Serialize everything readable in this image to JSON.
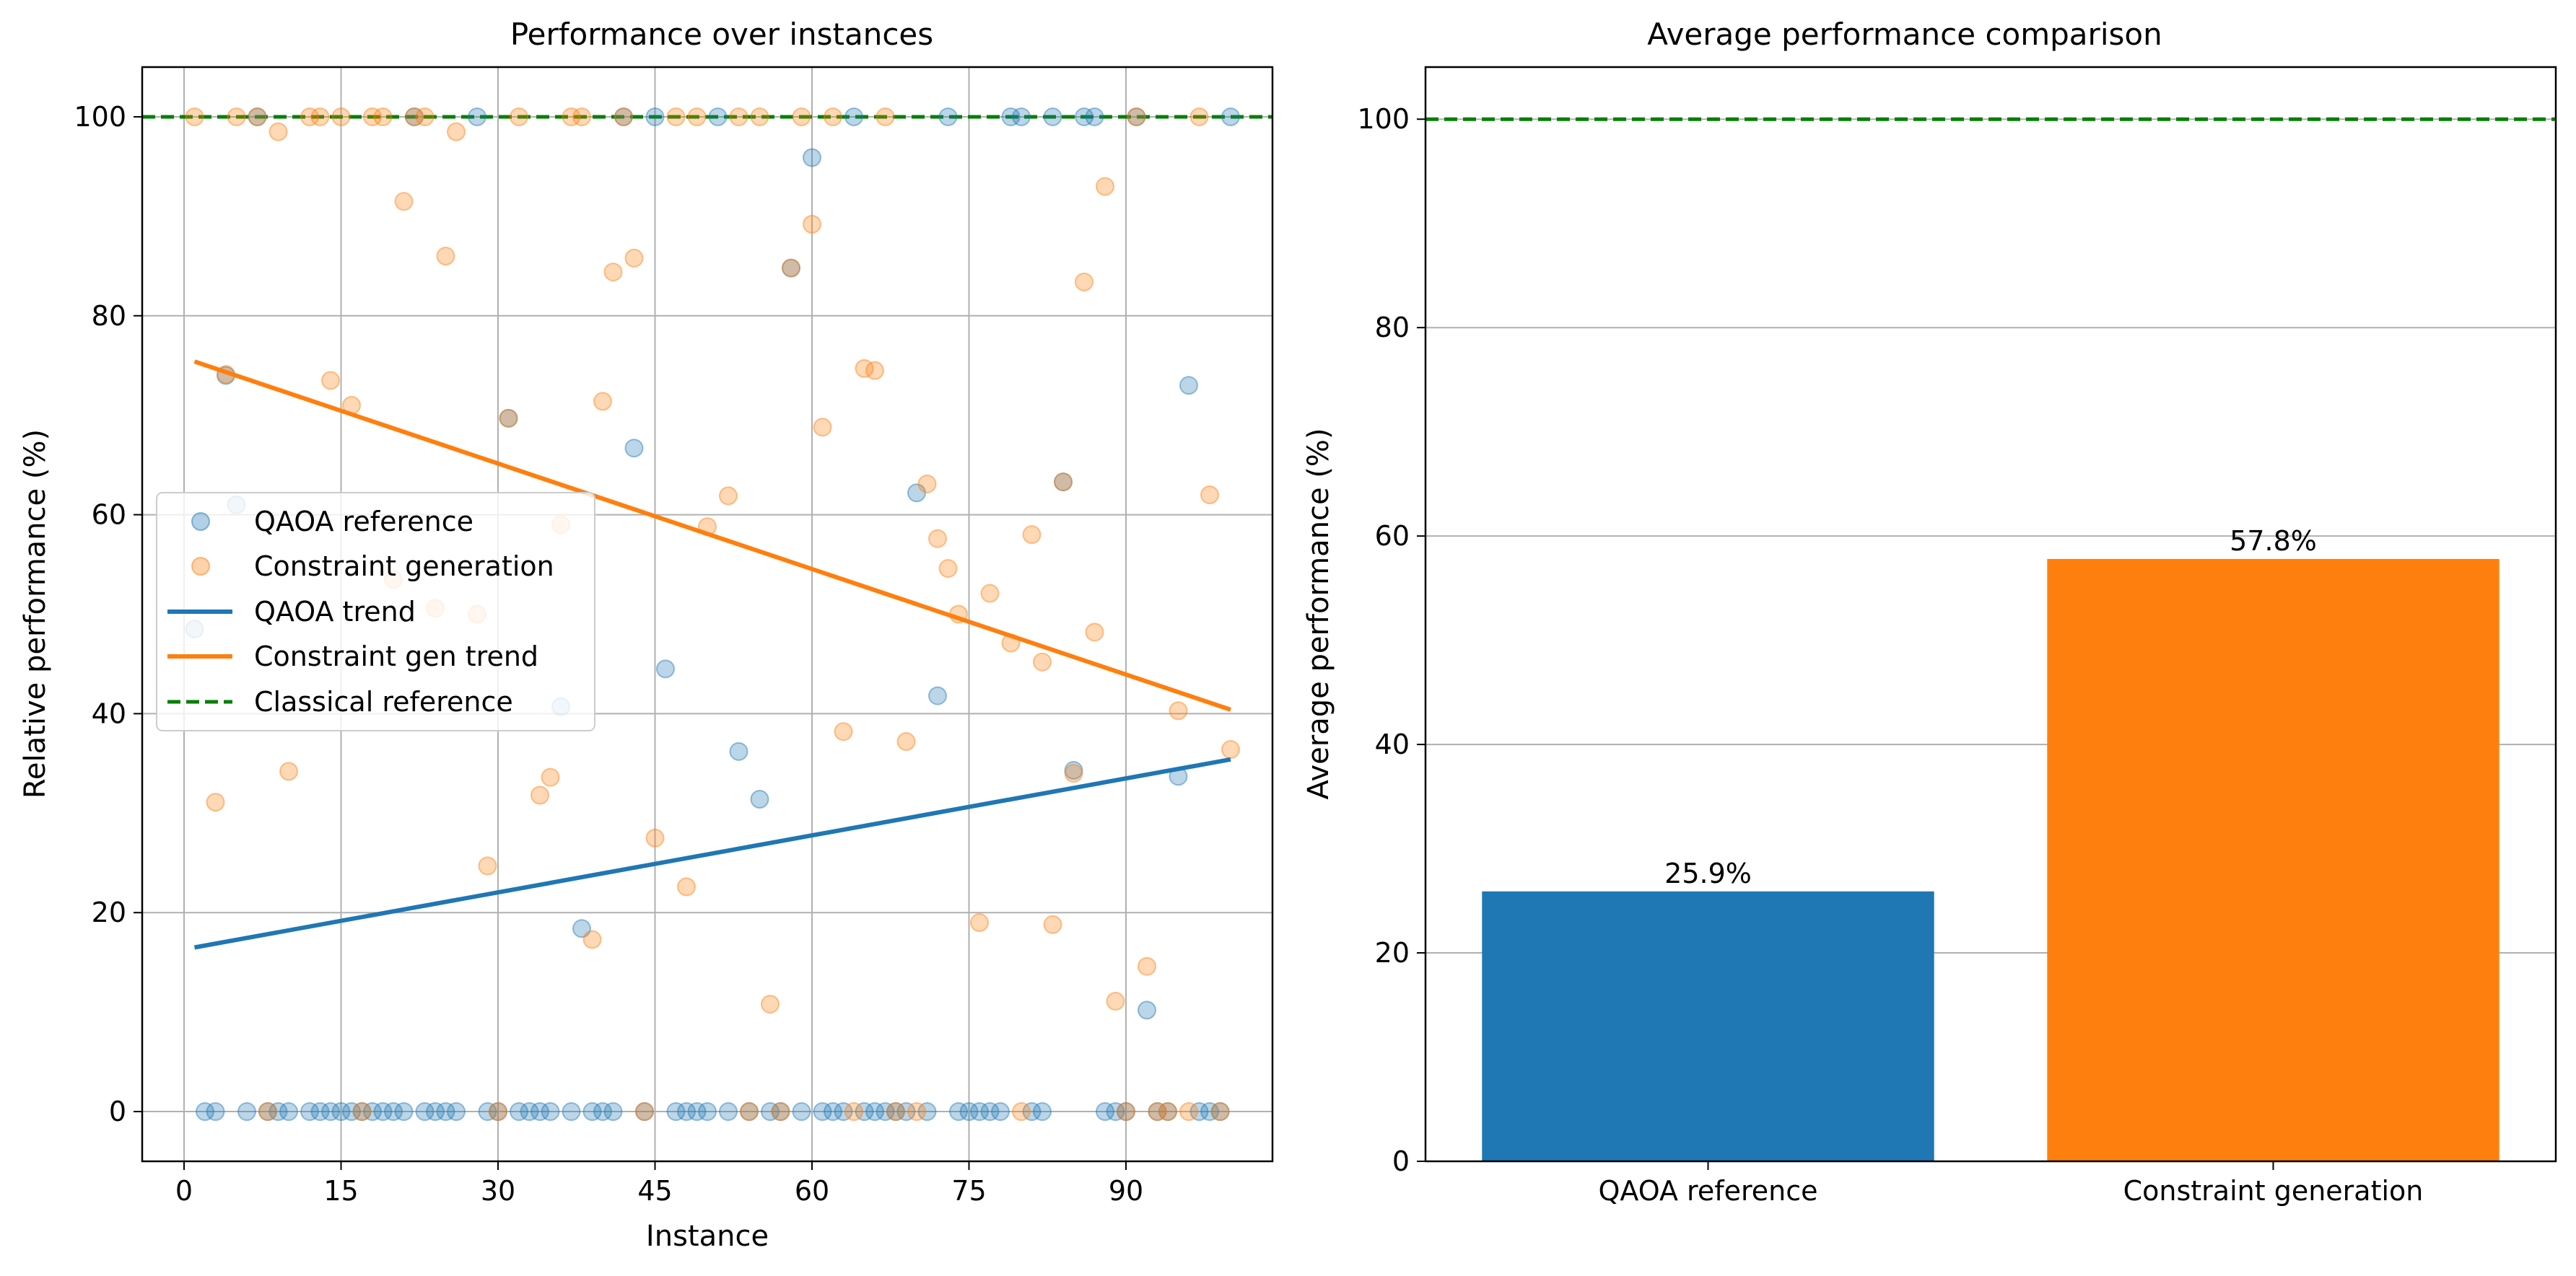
{
  "chart_data": [
    {
      "type": "scatter",
      "title": "Performance over instances",
      "xlabel": "Instance",
      "ylabel": "Relative performance (%)",
      "xlim": [
        -4,
        104
      ],
      "ylim": [
        -5,
        105
      ],
      "xticks": [
        0,
        15,
        30,
        45,
        60,
        75,
        90
      ],
      "yticks": [
        0,
        20,
        40,
        60,
        80,
        100
      ],
      "grid": true,
      "legend_position": "center-left",
      "legend": [
        "QAOA reference",
        "Constraint generation",
        "QAOA trend",
        "Constraint gen trend",
        "Classical reference"
      ],
      "series": [
        {
          "name": "QAOA reference",
          "kind": "scatter",
          "color": "#1f77b4",
          "points": [
            [
              1,
              48.5
            ],
            [
              2,
              0
            ],
            [
              3,
              0
            ],
            [
              4,
              74
            ],
            [
              5,
              61
            ],
            [
              6,
              0
            ],
            [
              7,
              100
            ],
            [
              8,
              0
            ],
            [
              9,
              0
            ],
            [
              10,
              0
            ],
            [
              12,
              0
            ],
            [
              13,
              0
            ],
            [
              14,
              0
            ],
            [
              15,
              0
            ],
            [
              16,
              0
            ],
            [
              17,
              0
            ],
            [
              18,
              0
            ],
            [
              19,
              0
            ],
            [
              20,
              0
            ],
            [
              21,
              0
            ],
            [
              22,
              100
            ],
            [
              23,
              0
            ],
            [
              24,
              0
            ],
            [
              25,
              0
            ],
            [
              26,
              0
            ],
            [
              28,
              100
            ],
            [
              29,
              0
            ],
            [
              30,
              0
            ],
            [
              31,
              69.7
            ],
            [
              32,
              0
            ],
            [
              33,
              0
            ],
            [
              34,
              0
            ],
            [
              35,
              0
            ],
            [
              36,
              40.7
            ],
            [
              37,
              0
            ],
            [
              38,
              18.4
            ],
            [
              39,
              0
            ],
            [
              40,
              0
            ],
            [
              41,
              0
            ],
            [
              42,
              100
            ],
            [
              43,
              66.7
            ],
            [
              44,
              0
            ],
            [
              45,
              100
            ],
            [
              46,
              44.5
            ],
            [
              47,
              0
            ],
            [
              48,
              0
            ],
            [
              49,
              0
            ],
            [
              50,
              0
            ],
            [
              51,
              100
            ],
            [
              52,
              0
            ],
            [
              53,
              36.2
            ],
            [
              54,
              0
            ],
            [
              55,
              31.4
            ],
            [
              56,
              0
            ],
            [
              57,
              0
            ],
            [
              58,
              84.8
            ],
            [
              59,
              0
            ],
            [
              60,
              95.9
            ],
            [
              61,
              0
            ],
            [
              62,
              0
            ],
            [
              63,
              0
            ],
            [
              64,
              100
            ],
            [
              65,
              0
            ],
            [
              66,
              0
            ],
            [
              67,
              0
            ],
            [
              68,
              0
            ],
            [
              69,
              0
            ],
            [
              70,
              62.2
            ],
            [
              71,
              0
            ],
            [
              72,
              41.8
            ],
            [
              73,
              100
            ],
            [
              74,
              0
            ],
            [
              75,
              0
            ],
            [
              76,
              0
            ],
            [
              77,
              0
            ],
            [
              78,
              0
            ],
            [
              79,
              100
            ],
            [
              80,
              100
            ],
            [
              81,
              0
            ],
            [
              82,
              0
            ],
            [
              83,
              100
            ],
            [
              84,
              63.3
            ],
            [
              85,
              34.3
            ],
            [
              86,
              100
            ],
            [
              87,
              100
            ],
            [
              88,
              0
            ],
            [
              89,
              0
            ],
            [
              90,
              0
            ],
            [
              91,
              100
            ],
            [
              92,
              10.2
            ],
            [
              93,
              0
            ],
            [
              94,
              0
            ],
            [
              95,
              33.7
            ],
            [
              96,
              73
            ],
            [
              97,
              0
            ],
            [
              98,
              0
            ],
            [
              99,
              0
            ],
            [
              100,
              100
            ]
          ]
        },
        {
          "name": "Constraint generation",
          "kind": "scatter",
          "color": "#ff7f0e",
          "points": [
            [
              1,
              100
            ],
            [
              3,
              31.1
            ],
            [
              4,
              74.1
            ],
            [
              5,
              100
            ],
            [
              7,
              100
            ],
            [
              8,
              0
            ],
            [
              9,
              98.5
            ],
            [
              10,
              34.2
            ],
            [
              12,
              100
            ],
            [
              13,
              100
            ],
            [
              14,
              73.5
            ],
            [
              15,
              100
            ],
            [
              16,
              71
            ],
            [
              17,
              0
            ],
            [
              18,
              100
            ],
            [
              19,
              100
            ],
            [
              20,
              53.5
            ],
            [
              21,
              91.5
            ],
            [
              22,
              100
            ],
            [
              23,
              100
            ],
            [
              24,
              50.6
            ],
            [
              25,
              86
            ],
            [
              26,
              98.5
            ],
            [
              28,
              50
            ],
            [
              29,
              24.7
            ],
            [
              30,
              0
            ],
            [
              31,
              69.7
            ],
            [
              32,
              100
            ],
            [
              34,
              31.8
            ],
            [
              35,
              33.6
            ],
            [
              36,
              59
            ],
            [
              37,
              100
            ],
            [
              38,
              100
            ],
            [
              39,
              17.3
            ],
            [
              40,
              71.4
            ],
            [
              41,
              84.4
            ],
            [
              42,
              100
            ],
            [
              43,
              85.8
            ],
            [
              44,
              0
            ],
            [
              45,
              27.5
            ],
            [
              47,
              100
            ],
            [
              48,
              22.6
            ],
            [
              49,
              100
            ],
            [
              50,
              58.8
            ],
            [
              52,
              61.9
            ],
            [
              53,
              100
            ],
            [
              54,
              0
            ],
            [
              55,
              100
            ],
            [
              56,
              10.8
            ],
            [
              57,
              0
            ],
            [
              58,
              84.8
            ],
            [
              59,
              100
            ],
            [
              60,
              89.2
            ],
            [
              61,
              68.8
            ],
            [
              62,
              100
            ],
            [
              63,
              38.2
            ],
            [
              64,
              0
            ],
            [
              65,
              74.7
            ],
            [
              66,
              74.5
            ],
            [
              67,
              100
            ],
            [
              68,
              0
            ],
            [
              69,
              37.2
            ],
            [
              70,
              0
            ],
            [
              71,
              63.1
            ],
            [
              72,
              57.6
            ],
            [
              73,
              54.6
            ],
            [
              74,
              50
            ],
            [
              76,
              19
            ],
            [
              77,
              52.1
            ],
            [
              79,
              47.1
            ],
            [
              80,
              0
            ],
            [
              81,
              58
            ],
            [
              82,
              45.2
            ],
            [
              83,
              18.8
            ],
            [
              84,
              63.3
            ],
            [
              85,
              34
            ],
            [
              86,
              83.4
            ],
            [
              87,
              48.2
            ],
            [
              88,
              93
            ],
            [
              89,
              11.1
            ],
            [
              90,
              0
            ],
            [
              91,
              100
            ],
            [
              92,
              14.6
            ],
            [
              93,
              0
            ],
            [
              94,
              0
            ],
            [
              95,
              40.3
            ],
            [
              96,
              0
            ],
            [
              97,
              100
            ],
            [
              98,
              62
            ],
            [
              99,
              0
            ],
            [
              100,
              36.4
            ]
          ]
        },
        {
          "name": "QAOA trend",
          "kind": "line",
          "color": "#1f77b4",
          "x": [
            1,
            100
          ],
          "y": [
            16.5,
            35.4
          ]
        },
        {
          "name": "Constraint gen trend",
          "kind": "line",
          "color": "#ff7f0e",
          "x": [
            1,
            100
          ],
          "y": [
            75.4,
            40.4
          ]
        },
        {
          "name": "Classical reference",
          "kind": "hline",
          "color": "#008000",
          "y": 100
        }
      ]
    },
    {
      "type": "bar",
      "title": "Average performance comparison",
      "xlabel": "",
      "ylabel": "Average performance (%)",
      "ylim": [
        0,
        105
      ],
      "yticks": [
        0,
        20,
        40,
        60,
        80,
        100
      ],
      "grid_axis": "y",
      "categories": [
        "QAOA reference",
        "Constraint generation"
      ],
      "values": [
        25.9,
        57.8
      ],
      "value_labels": [
        "25.9%",
        "57.8%"
      ],
      "colors": [
        "#1f77b4",
        "#ff7f0e"
      ],
      "reference_line": {
        "y": 100,
        "color": "#008000"
      }
    }
  ]
}
